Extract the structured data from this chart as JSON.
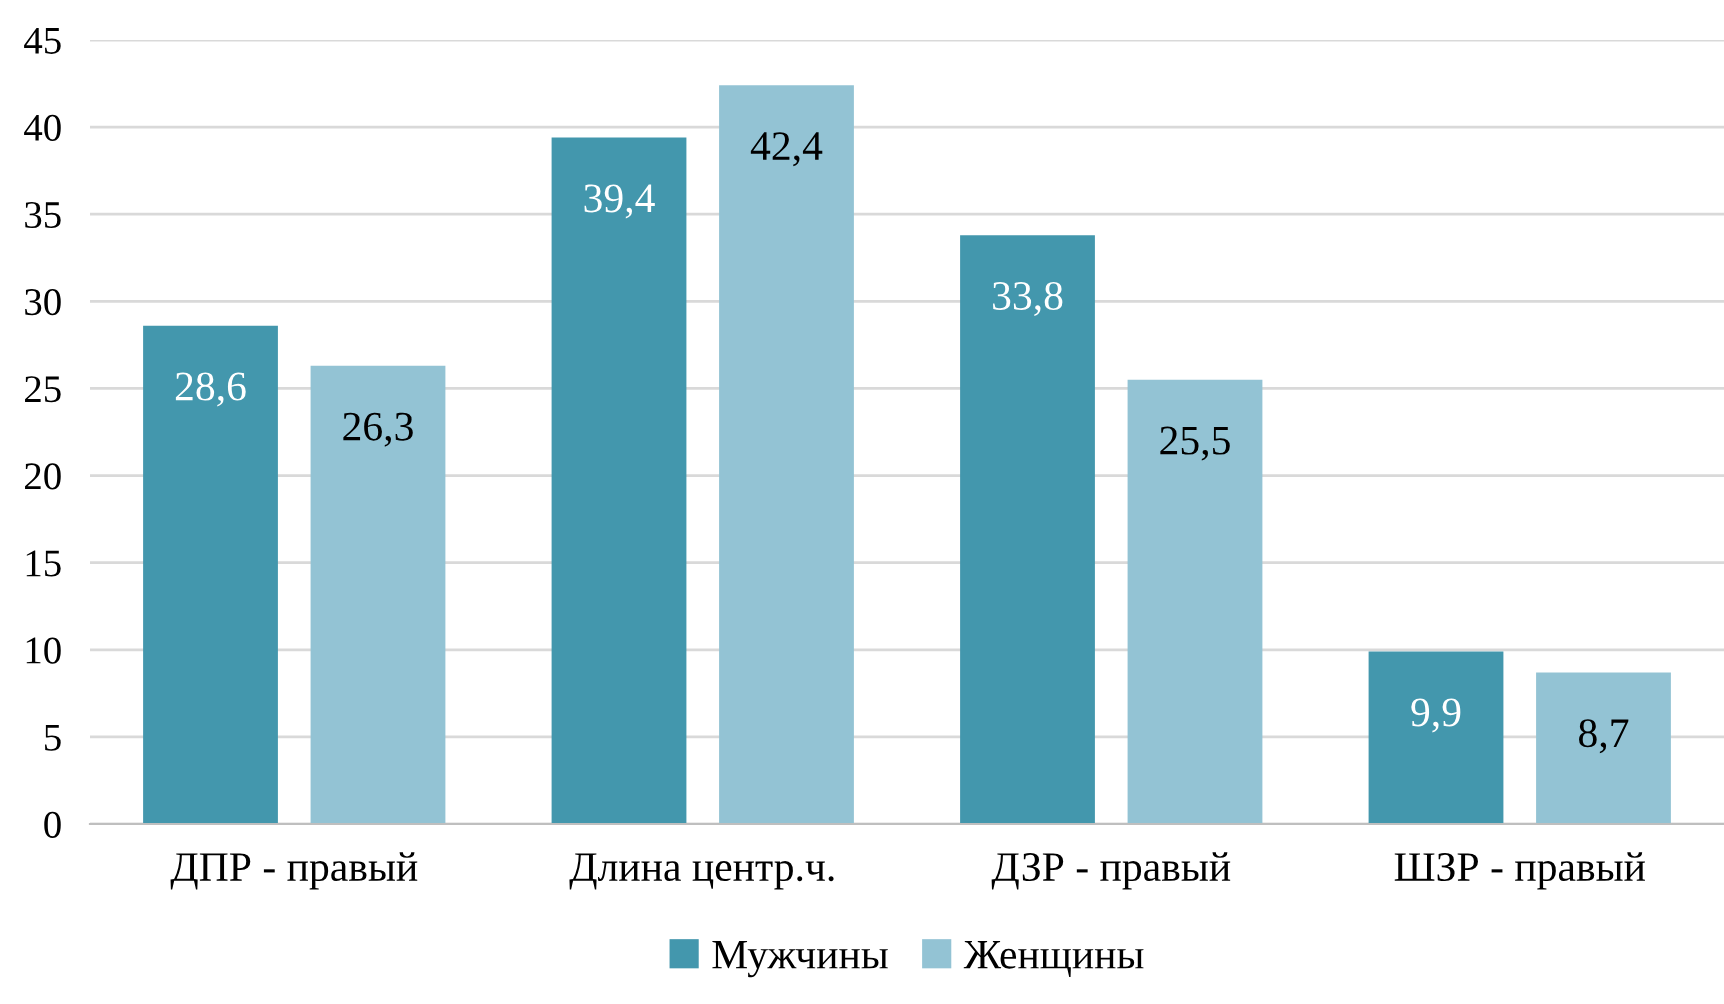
{
  "chart_data": {
    "type": "bar",
    "categories": [
      "ДПР - правый",
      "Длина центр.ч.",
      "ДЗР - правый",
      "ШЗР - правый"
    ],
    "series": [
      {
        "name": "Мужчины",
        "color": "#4397ad",
        "values": [
          28.6,
          39.4,
          33.8,
          9.9
        ],
        "value_labels": [
          "28,6",
          "39,4",
          "33,8",
          "9,9"
        ]
      },
      {
        "name": "Женщины",
        "color": "#93c3d4",
        "values": [
          26.3,
          42.4,
          25.5,
          8.7
        ],
        "value_labels": [
          "26,3",
          "42,4",
          "25,5",
          "8,7"
        ]
      }
    ],
    "ylim": [
      0,
      45
    ],
    "yticks": [
      0,
      5,
      10,
      15,
      20,
      25,
      30,
      35,
      40,
      45
    ],
    "grid": "y",
    "legend": "bottom"
  }
}
